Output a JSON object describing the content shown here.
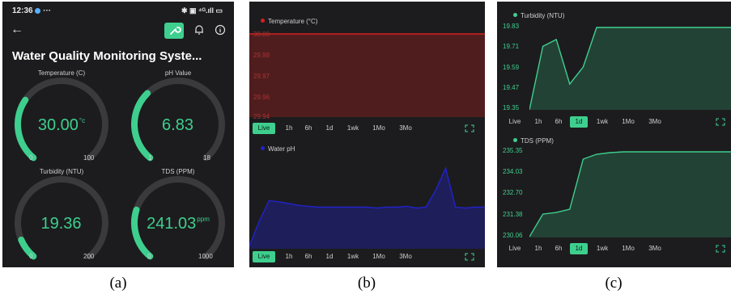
{
  "captions": [
    "(a)",
    "(b)",
    "(c)"
  ],
  "status": {
    "time": "12:36",
    "dots": "···",
    "right": "✱ ▣ ⁴ᴳ.ıll ▭"
  },
  "app": {
    "title": "Water Quality Monitoring Syste..."
  },
  "colors": {
    "accent": "#3ecf8e",
    "track": "#3a3a3c",
    "temp": "#d61f1f",
    "ph": "#2222cc",
    "panel_bg": "#1c1c1e"
  },
  "icons": [
    "arrow-left-icon",
    "wrench-icon",
    "bell-icon",
    "info-icon",
    "expand-icon"
  ],
  "gauges": [
    {
      "label": "Temperature (C)",
      "value": "30.00",
      "unit": "°c",
      "min": "0",
      "max": "100",
      "fraction": 0.3
    },
    {
      "label": "pH Value",
      "value": "6.83",
      "unit": "",
      "min": "1",
      "max": "18",
      "fraction": 0.341
    },
    {
      "label": "Turbidity (NTU)",
      "value": "19.36",
      "unit": "",
      "min": "0",
      "max": "200",
      "fraction": 0.097
    },
    {
      "label": "TDS (PPM)",
      "value": "241.03",
      "unit": "ppm",
      "min": "0",
      "max": "1000",
      "fraction": 0.241
    }
  ],
  "time_ranges": [
    "Live",
    "1h",
    "6h",
    "1d",
    "1wk",
    "1Mo",
    "3Mo"
  ],
  "chart_data": [
    {
      "id": "temperature",
      "type": "area",
      "legend": "Temperature (°C)",
      "color": "#d61f1f",
      "yticks": [
        "30.00",
        "29.98",
        "29.97",
        "29.96",
        "29.94"
      ],
      "ylim": [
        29.94,
        30.0
      ],
      "x": [
        0,
        1,
        2,
        3,
        4,
        5,
        6,
        7,
        8,
        9,
        10
      ],
      "y": [
        30.0,
        30.0,
        30.0,
        30.0,
        30.0,
        30.0,
        30.0,
        30.0,
        30.0,
        30.0,
        30.0
      ],
      "selected_range": "Live"
    },
    {
      "id": "ph",
      "type": "area",
      "legend": "Water pH",
      "color": "#2222cc",
      "yticks": [
        "",
        "",
        "",
        "",
        ""
      ],
      "ylim": [
        0,
        10
      ],
      "x": [
        0,
        1,
        2,
        3,
        4,
        5,
        6,
        7,
        8,
        9,
        10,
        11,
        12,
        13,
        14,
        15,
        16,
        17,
        18,
        19,
        20,
        21,
        22,
        23,
        24
      ],
      "y": [
        0.3,
        3.0,
        5.3,
        5.2,
        5.0,
        4.8,
        4.7,
        4.6,
        4.6,
        4.6,
        4.6,
        4.6,
        4.6,
        4.5,
        4.6,
        4.6,
        4.7,
        4.5,
        4.6,
        6.5,
        8.9,
        4.6,
        4.5,
        4.6,
        4.6
      ],
      "selected_range": "Live"
    },
    {
      "id": "turbidity",
      "type": "area",
      "legend": "Turbidity (NTU)",
      "color": "#3ecf8e",
      "yticks": [
        "19.83",
        "19.71",
        "19.59",
        "19.47",
        "19.35"
      ],
      "ylim": [
        19.35,
        19.83
      ],
      "x": [
        0,
        1,
        2,
        3,
        4,
        5,
        6,
        7,
        8,
        9,
        10,
        11,
        12,
        13,
        14,
        15
      ],
      "y": [
        19.35,
        19.72,
        19.76,
        19.5,
        19.6,
        19.83,
        19.83,
        19.83,
        19.83,
        19.83,
        19.83,
        19.83,
        19.83,
        19.83,
        19.83,
        19.83
      ],
      "selected_range": "1d"
    },
    {
      "id": "tds",
      "type": "area",
      "legend": "TDS (PPM)",
      "color": "#3ecf8e",
      "yticks": [
        "235.35",
        "234.03",
        "232.70",
        "231.38",
        "230.06"
      ],
      "ylim": [
        230.06,
        235.35
      ],
      "x": [
        0,
        1,
        2,
        3,
        4,
        5,
        6,
        7,
        8,
        9,
        10,
        11,
        12,
        13,
        14,
        15
      ],
      "y": [
        230.1,
        231.5,
        231.6,
        231.8,
        234.9,
        235.2,
        235.3,
        235.35,
        235.35,
        235.35,
        235.35,
        235.35,
        235.35,
        235.35,
        235.35,
        235.35
      ],
      "selected_range": "1d"
    }
  ]
}
